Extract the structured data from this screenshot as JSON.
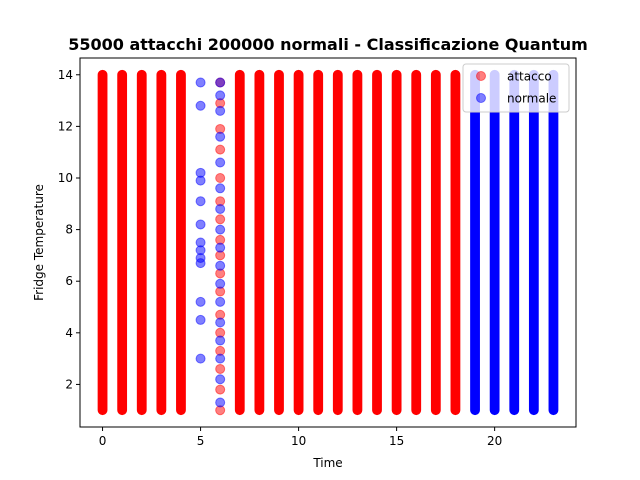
{
  "chart_data": {
    "type": "scatter",
    "title": "55000 attacchi 200000 normali - Classificazione Quantum",
    "xlabel": "Time",
    "ylabel": "Fridge Temperature",
    "xlim": [
      -1.15,
      24.15
    ],
    "ylim": [
      0.35,
      14.65
    ],
    "x_ticks": [
      0,
      5,
      10,
      15,
      20
    ],
    "y_ticks": [
      2,
      4,
      6,
      8,
      10,
      12,
      14
    ],
    "grid": false,
    "legend_position": "top-right",
    "series": [
      {
        "name": "attacco",
        "color": "#ff0000",
        "opacity": 0.5,
        "columns": [
          {
            "x": 0,
            "y_min": 1,
            "y_max": 14
          },
          {
            "x": 1,
            "y_min": 1,
            "y_max": 14
          },
          {
            "x": 2,
            "y_min": 1,
            "y_max": 14
          },
          {
            "x": 3,
            "y_min": 1,
            "y_max": 14
          },
          {
            "x": 4,
            "y_min": 1,
            "y_max": 14
          },
          {
            "x": 7,
            "y_min": 1,
            "y_max": 14
          },
          {
            "x": 8,
            "y_min": 1,
            "y_max": 14
          },
          {
            "x": 9,
            "y_min": 1,
            "y_max": 14
          },
          {
            "x": 10,
            "y_min": 1,
            "y_max": 14
          },
          {
            "x": 11,
            "y_min": 1,
            "y_max": 14
          },
          {
            "x": 12,
            "y_min": 1,
            "y_max": 14
          },
          {
            "x": 13,
            "y_min": 1,
            "y_max": 14
          },
          {
            "x": 14,
            "y_min": 1,
            "y_max": 14
          },
          {
            "x": 15,
            "y_min": 1,
            "y_max": 14
          },
          {
            "x": 16,
            "y_min": 1,
            "y_max": 14
          },
          {
            "x": 17,
            "y_min": 1,
            "y_max": 14
          },
          {
            "x": 18,
            "y_min": 1,
            "y_max": 14
          }
        ],
        "points": [
          {
            "x": 6,
            "y": 13.7
          },
          {
            "x": 6,
            "y": 12.9
          },
          {
            "x": 6,
            "y": 11.9
          },
          {
            "x": 6,
            "y": 11.1
          },
          {
            "x": 6,
            "y": 10.0
          },
          {
            "x": 6,
            "y": 9.1
          },
          {
            "x": 6,
            "y": 8.4
          },
          {
            "x": 6,
            "y": 7.6
          },
          {
            "x": 6,
            "y": 7.0
          },
          {
            "x": 6,
            "y": 6.3
          },
          {
            "x": 6,
            "y": 5.6
          },
          {
            "x": 6,
            "y": 4.7
          },
          {
            "x": 6,
            "y": 4.0
          },
          {
            "x": 6,
            "y": 3.3
          },
          {
            "x": 6,
            "y": 2.6
          },
          {
            "x": 6,
            "y": 1.8
          },
          {
            "x": 6,
            "y": 1.0
          }
        ]
      },
      {
        "name": "normale",
        "color": "#0000ff",
        "opacity": 0.5,
        "columns": [
          {
            "x": 19,
            "y_min": 1,
            "y_max": 14
          },
          {
            "x": 20,
            "y_min": 1,
            "y_max": 14
          },
          {
            "x": 21,
            "y_min": 1,
            "y_max": 14
          },
          {
            "x": 22,
            "y_min": 1,
            "y_max": 14
          },
          {
            "x": 23,
            "y_min": 1,
            "y_max": 14
          }
        ],
        "points": [
          {
            "x": 5,
            "y": 13.7
          },
          {
            "x": 5,
            "y": 12.8
          },
          {
            "x": 5,
            "y": 10.2
          },
          {
            "x": 5,
            "y": 9.9
          },
          {
            "x": 5,
            "y": 9.1
          },
          {
            "x": 5,
            "y": 8.2
          },
          {
            "x": 5,
            "y": 7.5
          },
          {
            "x": 5,
            "y": 7.2
          },
          {
            "x": 5,
            "y": 6.9
          },
          {
            "x": 5,
            "y": 6.7
          },
          {
            "x": 5,
            "y": 5.2
          },
          {
            "x": 5,
            "y": 4.5
          },
          {
            "x": 5,
            "y": 3.0
          },
          {
            "x": 6,
            "y": 13.7
          },
          {
            "x": 6,
            "y": 13.2
          },
          {
            "x": 6,
            "y": 12.6
          },
          {
            "x": 6,
            "y": 11.6
          },
          {
            "x": 6,
            "y": 10.6
          },
          {
            "x": 6,
            "y": 9.6
          },
          {
            "x": 6,
            "y": 8.8
          },
          {
            "x": 6,
            "y": 8.0
          },
          {
            "x": 6,
            "y": 7.3
          },
          {
            "x": 6,
            "y": 6.6
          },
          {
            "x": 6,
            "y": 5.9
          },
          {
            "x": 6,
            "y": 5.2
          },
          {
            "x": 6,
            "y": 4.4
          },
          {
            "x": 6,
            "y": 3.7
          },
          {
            "x": 6,
            "y": 3.0
          },
          {
            "x": 6,
            "y": 2.2
          },
          {
            "x": 6,
            "y": 1.3
          }
        ]
      }
    ]
  }
}
